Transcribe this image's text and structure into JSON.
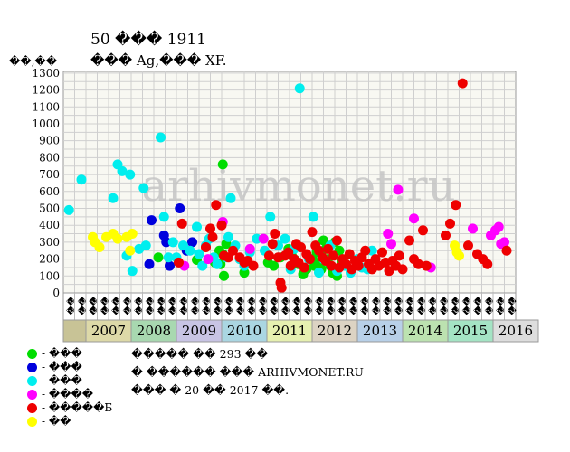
{
  "chart_data": {
    "type": "scatter",
    "title": "50 ��� 1911",
    "subtitle": "��� Ag,��� XF.",
    "ylabel": "��,��",
    "watermark": "arhivmonet.ru",
    "ylim": [
      0,
      1300
    ],
    "yticks": [
      0,
      100,
      200,
      300,
      400,
      500,
      600,
      700,
      800,
      900,
      1000,
      1100,
      1200,
      1300
    ],
    "quarter_labels": [
      "��",
      "��",
      "��",
      "��",
      "��",
      "��",
      "��",
      "��",
      "��",
      "��",
      "��",
      "��",
      "��",
      "��",
      "��",
      "��",
      "��",
      "��",
      "��",
      "��",
      "��",
      "��",
      "��",
      "��",
      "��",
      "��",
      "��",
      "��",
      "��",
      "��",
      "��",
      "��",
      "��",
      "��",
      "��",
      "��",
      "��",
      "��",
      "��",
      "��"
    ],
    "years": [
      {
        "label": "2007",
        "color": "#ddd9a8"
      },
      {
        "label": "2008",
        "color": "#a8d8b0"
      },
      {
        "label": "2009",
        "color": "#c8c4e4"
      },
      {
        "label": "2010",
        "color": "#aad6e2"
      },
      {
        "label": "2011",
        "color": "#e6f0b0"
      },
      {
        "label": "2012",
        "color": "#dcd3c3"
      },
      {
        "label": "2013",
        "color": "#b8d0e8"
      },
      {
        "label": "2014",
        "color": "#bce2b0"
      },
      {
        "label": "2015",
        "color": "#a4e4c4"
      },
      {
        "label": "2016",
        "color": "#dddddd"
      }
    ],
    "series": [
      {
        "name": "- ���",
        "color": "#00dd00",
        "points": [
          [
            8.4,
            210
          ],
          [
            11.8,
            195
          ],
          [
            13.4,
            180
          ],
          [
            13.8,
            250
          ],
          [
            13.9,
            170
          ],
          [
            14.1,
            760
          ],
          [
            14.1,
            230
          ],
          [
            14.2,
            100
          ],
          [
            14.4,
            290
          ],
          [
            16.0,
            120
          ],
          [
            18.1,
            180
          ],
          [
            18.6,
            160
          ],
          [
            19.2,
            210
          ],
          [
            19.9,
            260
          ],
          [
            20.2,
            220
          ],
          [
            20.5,
            195
          ],
          [
            20.8,
            170
          ],
          [
            21.2,
            110
          ],
          [
            21.5,
            140
          ],
          [
            22.0,
            200
          ],
          [
            22.2,
            160
          ],
          [
            22.4,
            240
          ],
          [
            22.6,
            180
          ],
          [
            22.8,
            140
          ],
          [
            23.0,
            310
          ],
          [
            23.2,
            260
          ],
          [
            23.4,
            200
          ],
          [
            23.6,
            160
          ],
          [
            23.8,
            120
          ],
          [
            24.0,
            300
          ],
          [
            24.2,
            100
          ],
          [
            24.4,
            250
          ],
          [
            24.6,
            180
          ]
        ]
      },
      {
        "name": "- ���",
        "color": "#0000dd",
        "points": [
          [
            7.6,
            170
          ],
          [
            7.8,
            430
          ],
          [
            8.9,
            340
          ],
          [
            9.1,
            300
          ],
          [
            9.4,
            160
          ],
          [
            10.3,
            500
          ],
          [
            10.9,
            250
          ],
          [
            11.4,
            300
          ]
        ]
      },
      {
        "name": "- ���",
        "color": "#00eeee",
        "points": [
          [
            0.5,
            490
          ],
          [
            1.6,
            670
          ],
          [
            4.4,
            560
          ],
          [
            4.8,
            760
          ],
          [
            5.2,
            720
          ],
          [
            5.6,
            220
          ],
          [
            5.9,
            700
          ],
          [
            6.1,
            130
          ],
          [
            6.7,
            260
          ],
          [
            7.1,
            620
          ],
          [
            7.3,
            280
          ],
          [
            8.6,
            920
          ],
          [
            8.9,
            450
          ],
          [
            9.3,
            210
          ],
          [
            9.7,
            300
          ],
          [
            10.0,
            210
          ],
          [
            10.6,
            280
          ],
          [
            11.2,
            250
          ],
          [
            11.8,
            390
          ],
          [
            12.0,
            230
          ],
          [
            12.3,
            160
          ],
          [
            12.6,
            280
          ],
          [
            12.9,
            320
          ],
          [
            13.3,
            210
          ],
          [
            13.6,
            170
          ],
          [
            14.4,
            210
          ],
          [
            14.6,
            330
          ],
          [
            14.8,
            560
          ],
          [
            15.2,
            280
          ],
          [
            15.6,
            200
          ],
          [
            16.0,
            160
          ],
          [
            16.5,
            240
          ],
          [
            17.1,
            320
          ],
          [
            17.8,
            250
          ],
          [
            18.3,
            450
          ],
          [
            19.0,
            280
          ],
          [
            19.6,
            320
          ],
          [
            20.1,
            140
          ],
          [
            20.4,
            260
          ],
          [
            20.9,
            1210
          ],
          [
            21.7,
            200
          ],
          [
            22.1,
            450
          ],
          [
            22.6,
            120
          ],
          [
            23.0,
            200
          ],
          [
            23.6,
            280
          ],
          [
            24.2,
            130
          ],
          [
            24.9,
            160
          ],
          [
            25.4,
            120
          ],
          [
            26.0,
            200
          ],
          [
            26.4,
            150
          ],
          [
            26.9,
            140
          ],
          [
            27.3,
            250
          ]
        ]
      },
      {
        "name": "- ����",
        "color": "#ff00ff",
        "points": [
          [
            10.7,
            160
          ],
          [
            12.8,
            200
          ],
          [
            14.1,
            420
          ],
          [
            16.5,
            260
          ],
          [
            17.7,
            320
          ],
          [
            28.7,
            350
          ],
          [
            29.0,
            290
          ],
          [
            29.6,
            610
          ],
          [
            31.0,
            440
          ],
          [
            32.5,
            150
          ],
          [
            36.2,
            380
          ],
          [
            37.8,
            340
          ],
          [
            38.2,
            370
          ],
          [
            38.5,
            390
          ],
          [
            38.7,
            290
          ],
          [
            39.0,
            300
          ]
        ]
      },
      {
        "name": "- �����Б",
        "color": "#ee0000",
        "points": [
          [
            10.2,
            180
          ],
          [
            10.5,
            410
          ],
          [
            12.6,
            270
          ],
          [
            13.0,
            380
          ],
          [
            13.2,
            330
          ],
          [
            13.5,
            520
          ],
          [
            14.0,
            400
          ],
          [
            14.2,
            220
          ],
          [
            14.6,
            210
          ],
          [
            15.0,
            250
          ],
          [
            15.6,
            210
          ],
          [
            16.0,
            180
          ],
          [
            16.3,
            190
          ],
          [
            16.8,
            160
          ],
          [
            18.2,
            220
          ],
          [
            18.5,
            290
          ],
          [
            18.7,
            350
          ],
          [
            19.0,
            210
          ],
          [
            19.2,
            60
          ],
          [
            19.3,
            30
          ],
          [
            19.6,
            220
          ],
          [
            19.9,
            240
          ],
          [
            20.1,
            160
          ],
          [
            20.4,
            200
          ],
          [
            20.6,
            290
          ],
          [
            20.8,
            180
          ],
          [
            21.0,
            270
          ],
          [
            21.3,
            150
          ],
          [
            21.5,
            230
          ],
          [
            21.8,
            200
          ],
          [
            22.0,
            360
          ],
          [
            22.3,
            280
          ],
          [
            22.6,
            250
          ],
          [
            22.9,
            210
          ],
          [
            23.2,
            190
          ],
          [
            23.4,
            260
          ],
          [
            23.7,
            160
          ],
          [
            23.9,
            220
          ],
          [
            24.2,
            310
          ],
          [
            24.4,
            150
          ],
          [
            24.7,
            200
          ],
          [
            25.0,
            170
          ],
          [
            25.3,
            230
          ],
          [
            25.5,
            140
          ],
          [
            25.8,
            190
          ],
          [
            26.1,
            160
          ],
          [
            26.4,
            210
          ],
          [
            26.7,
            250
          ],
          [
            27.0,
            170
          ],
          [
            27.3,
            140
          ],
          [
            27.6,
            200
          ],
          [
            27.9,
            160
          ],
          [
            28.2,
            240
          ],
          [
            28.5,
            180
          ],
          [
            28.8,
            130
          ],
          [
            29.1,
            190
          ],
          [
            29.4,
            160
          ],
          [
            29.7,
            220
          ],
          [
            30.0,
            140
          ],
          [
            30.6,
            310
          ],
          [
            31.0,
            200
          ],
          [
            31.4,
            170
          ],
          [
            31.8,
            370
          ],
          [
            32.1,
            160
          ],
          [
            33.8,
            340
          ],
          [
            34.2,
            410
          ],
          [
            34.7,
            520
          ],
          [
            35.3,
            1240
          ],
          [
            35.8,
            280
          ],
          [
            36.6,
            230
          ],
          [
            37.1,
            200
          ],
          [
            37.5,
            170
          ],
          [
            39.2,
            250
          ]
        ]
      },
      {
        "name": "- ��",
        "color": "#ffff00",
        "points": [
          [
            2.6,
            330
          ],
          [
            2.8,
            300
          ],
          [
            3.2,
            270
          ],
          [
            3.8,
            330
          ],
          [
            4.4,
            350
          ],
          [
            4.8,
            320
          ],
          [
            5.6,
            330
          ],
          [
            5.9,
            250
          ],
          [
            6.1,
            350
          ],
          [
            34.6,
            280
          ],
          [
            34.8,
            240
          ],
          [
            35.0,
            220
          ]
        ]
      }
    ]
  },
  "notes": {
    "line1": "����� �� 293 ��",
    "line2": "� ������ ��� ARHIVMONET.RU",
    "line3": "��� � 20 �� 2017 ��."
  }
}
